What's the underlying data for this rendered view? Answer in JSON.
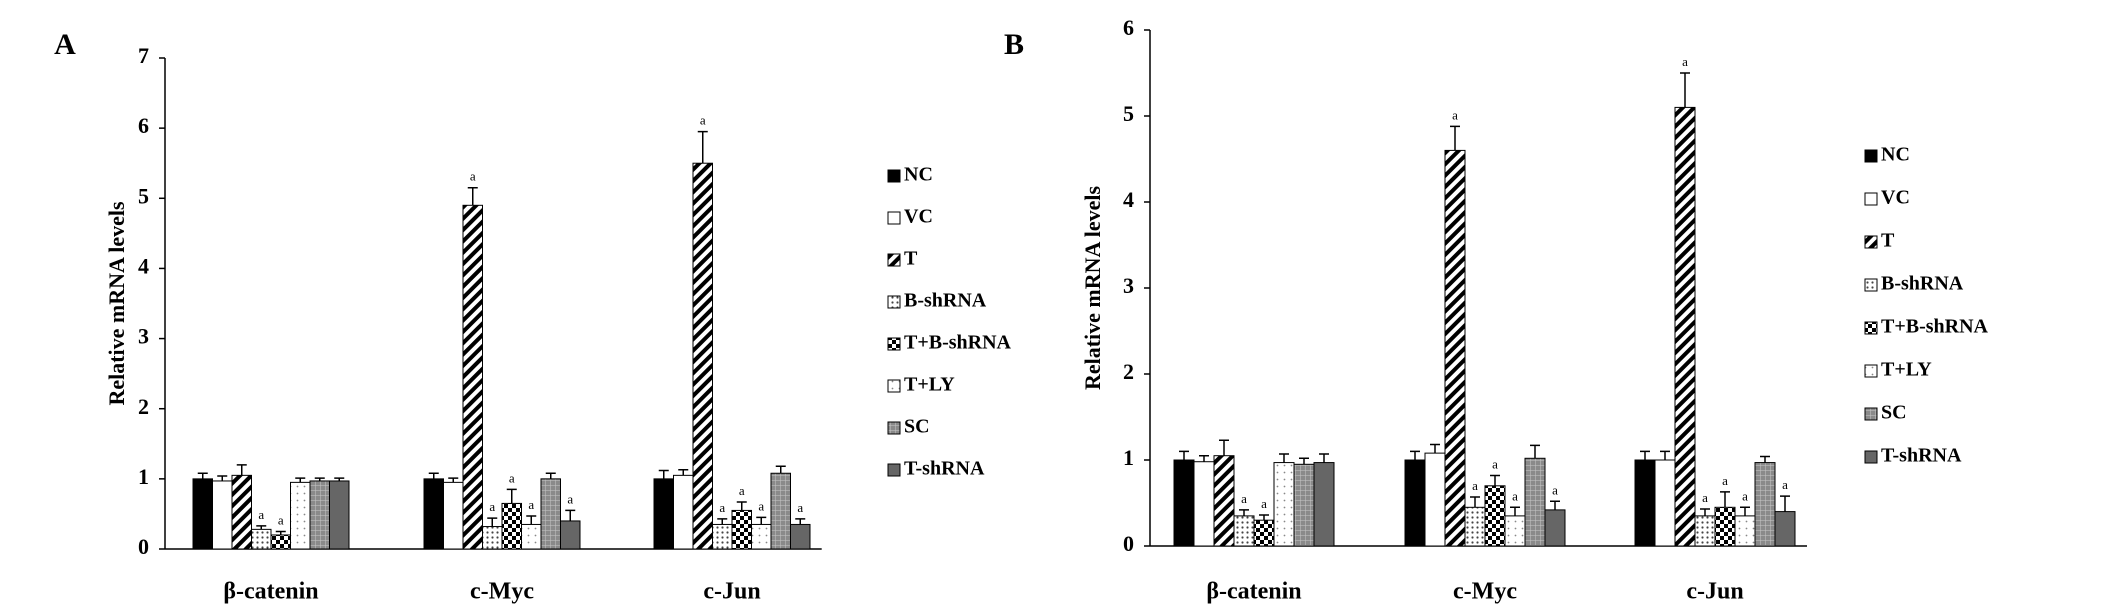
{
  "chart_data": [
    {
      "type": "bar",
      "panel": "A",
      "y_label": "Relative mRNA levels",
      "categories": [
        "β-catenin",
        "c-Myc",
        "c-Jun"
      ],
      "ylim": [
        0,
        7
      ],
      "yticks": [
        0,
        1,
        2,
        3,
        4,
        5,
        6,
        7
      ],
      "series": [
        {
          "name": "NC",
          "color": "#000000",
          "pattern": "solid",
          "values": [
            1.0,
            1.0,
            1.0
          ],
          "errors": [
            0.08,
            0.08,
            0.12
          ],
          "significance": [
            null,
            null,
            null
          ]
        },
        {
          "name": "VC",
          "color": "#ffffff",
          "pattern": "solid",
          "values": [
            0.97,
            0.95,
            1.05
          ],
          "errors": [
            0.07,
            0.06,
            0.08
          ],
          "significance": [
            null,
            null,
            null
          ]
        },
        {
          "name": "T",
          "color": "#000000",
          "pattern": "hatch",
          "values": [
            1.05,
            4.9,
            5.5
          ],
          "errors": [
            0.15,
            0.25,
            0.45
          ],
          "significance": [
            null,
            "a",
            "a"
          ]
        },
        {
          "name": "B-shRNA",
          "color": "#000000",
          "pattern": "dots",
          "values": [
            0.28,
            0.32,
            0.35
          ],
          "errors": [
            0.05,
            0.12,
            0.08
          ],
          "significance": [
            "a",
            "a",
            "a"
          ]
        },
        {
          "name": "T+B-shRNA",
          "color": "#000000",
          "pattern": "check",
          "values": [
            0.2,
            0.65,
            0.55
          ],
          "errors": [
            0.05,
            0.2,
            0.12
          ],
          "significance": [
            "a",
            "a",
            "a"
          ]
        },
        {
          "name": "T+LY",
          "color": "#000000",
          "pattern": "lightdots",
          "values": [
            0.95,
            0.35,
            0.35
          ],
          "errors": [
            0.06,
            0.12,
            0.1
          ],
          "significance": [
            null,
            "a",
            "a"
          ]
        },
        {
          "name": "SC",
          "color": "#808080",
          "pattern": "grid",
          "values": [
            0.97,
            1.0,
            1.08
          ],
          "errors": [
            0.04,
            0.08,
            0.1
          ],
          "significance": [
            null,
            null,
            null
          ]
        },
        {
          "name": "T-shRNA",
          "color": "#666666",
          "pattern": "solid",
          "values": [
            0.97,
            0.4,
            0.35
          ],
          "errors": [
            0.04,
            0.15,
            0.08
          ],
          "significance": [
            null,
            "a",
            "a"
          ]
        }
      ]
    },
    {
      "type": "bar",
      "panel": "B",
      "y_label": "Relative mRNA levels",
      "categories": [
        "β-catenin",
        "c-Myc",
        "c-Jun"
      ],
      "ylim": [
        0,
        6
      ],
      "yticks": [
        0,
        1,
        2,
        3,
        4,
        5,
        6
      ],
      "series": [
        {
          "name": "NC",
          "color": "#000000",
          "pattern": "solid",
          "values": [
            1.0,
            1.0,
            1.0
          ],
          "errors": [
            0.1,
            0.1,
            0.1
          ],
          "significance": [
            null,
            null,
            null
          ]
        },
        {
          "name": "VC",
          "color": "#ffffff",
          "pattern": "solid",
          "values": [
            0.98,
            1.08,
            1.0
          ],
          "errors": [
            0.07,
            0.1,
            0.1
          ],
          "significance": [
            null,
            null,
            null
          ]
        },
        {
          "name": "T",
          "color": "#000000",
          "pattern": "hatch",
          "values": [
            1.05,
            4.6,
            5.1
          ],
          "errors": [
            0.18,
            0.28,
            0.4
          ],
          "significance": [
            null,
            "a",
            "a"
          ]
        },
        {
          "name": "B-shRNA",
          "color": "#000000",
          "pattern": "dots",
          "values": [
            0.35,
            0.45,
            0.35
          ],
          "errors": [
            0.07,
            0.12,
            0.08
          ],
          "significance": [
            "a",
            "a",
            "a"
          ]
        },
        {
          "name": "T+B-shRNA",
          "color": "#000000",
          "pattern": "check",
          "values": [
            0.3,
            0.7,
            0.45
          ],
          "errors": [
            0.06,
            0.12,
            0.18
          ],
          "significance": [
            "a",
            "a",
            "a"
          ]
        },
        {
          "name": "T+LY",
          "color": "#000000",
          "pattern": "lightdots",
          "values": [
            0.97,
            0.35,
            0.35
          ],
          "errors": [
            0.1,
            0.1,
            0.1
          ],
          "significance": [
            null,
            "a",
            "a"
          ]
        },
        {
          "name": "SC",
          "color": "#808080",
          "pattern": "grid",
          "values": [
            0.95,
            1.02,
            0.97
          ],
          "errors": [
            0.07,
            0.15,
            0.07
          ],
          "significance": [
            null,
            null,
            null
          ]
        },
        {
          "name": "T-shRNA",
          "color": "#666666",
          "pattern": "solid",
          "values": [
            0.97,
            0.42,
            0.4
          ],
          "errors": [
            0.1,
            0.1,
            0.18
          ],
          "significance": [
            null,
            "a",
            "a"
          ]
        }
      ]
    }
  ]
}
